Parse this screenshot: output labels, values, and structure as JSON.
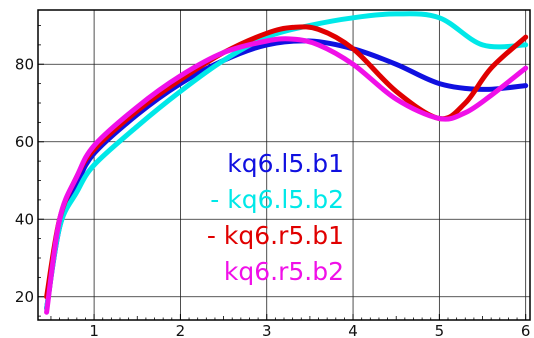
{
  "chart_data": {
    "type": "line",
    "title": "",
    "xlabel": "",
    "ylabel": "",
    "xlim": [
      0.35,
      6.05
    ],
    "ylim": [
      14,
      94
    ],
    "grid": true,
    "legend_placement": "center",
    "x_ticks": [
      {
        "value": 1,
        "label": "1"
      },
      {
        "value": 2,
        "label": "2"
      },
      {
        "value": 3,
        "label": "3"
      },
      {
        "value": 4,
        "label": "4"
      },
      {
        "value": 5,
        "label": "5"
      },
      {
        "value": 6,
        "label": "6"
      }
    ],
    "y_ticks": [
      {
        "value": 20,
        "label": "20"
      },
      {
        "value": 40,
        "label": "40"
      },
      {
        "value": 60,
        "label": "60"
      },
      {
        "value": 80,
        "label": "80"
      }
    ],
    "series": [
      {
        "name": "kq6.l5.b1",
        "legend_text": "kq6.l5.b1",
        "color": "#1010e0",
        "points": [
          [
            0.45,
            17
          ],
          [
            0.6,
            38
          ],
          [
            0.8,
            49
          ],
          [
            1,
            57
          ],
          [
            1.5,
            67
          ],
          [
            2,
            75
          ],
          [
            2.5,
            81
          ],
          [
            3,
            85
          ],
          [
            3.5,
            86
          ],
          [
            4,
            84
          ],
          [
            4.5,
            80
          ],
          [
            5,
            75
          ],
          [
            5.5,
            73.5
          ],
          [
            6,
            74.5
          ]
        ]
      },
      {
        "name": "kq6.l5.b2",
        "legend_text": "- kq6.l5.b2",
        "color": "#00e8e8",
        "points": [
          [
            0.45,
            17
          ],
          [
            0.6,
            38
          ],
          [
            0.8,
            47
          ],
          [
            1,
            54
          ],
          [
            1.5,
            64
          ],
          [
            2,
            73
          ],
          [
            2.5,
            81
          ],
          [
            3,
            87
          ],
          [
            3.5,
            90
          ],
          [
            4,
            92
          ],
          [
            4.5,
            93
          ],
          [
            5,
            92
          ],
          [
            5.5,
            85
          ],
          [
            6,
            85
          ]
        ]
      },
      {
        "name": "kq6.r5.b1",
        "legend_text": "- kq6.r5.b1",
        "color": "#e00000",
        "points": [
          [
            0.45,
            20
          ],
          [
            0.6,
            40
          ],
          [
            0.8,
            51
          ],
          [
            1,
            58
          ],
          [
            1.5,
            68
          ],
          [
            2,
            76
          ],
          [
            2.5,
            83
          ],
          [
            3,
            88
          ],
          [
            3.3,
            89.5
          ],
          [
            3.6,
            89
          ],
          [
            4,
            84
          ],
          [
            4.5,
            73
          ],
          [
            5,
            66
          ],
          [
            5.3,
            70
          ],
          [
            5.6,
            79
          ],
          [
            6,
            87
          ]
        ]
      },
      {
        "name": "kq6.r5.b2",
        "legend_text": "kq6.r5.b2",
        "color": "#f010e8",
        "points": [
          [
            0.45,
            16
          ],
          [
            0.6,
            40
          ],
          [
            0.8,
            51
          ],
          [
            1,
            59
          ],
          [
            1.5,
            69
          ],
          [
            2,
            77
          ],
          [
            2.5,
            83
          ],
          [
            3,
            86
          ],
          [
            3.3,
            86.5
          ],
          [
            3.6,
            85
          ],
          [
            4,
            80
          ],
          [
            4.5,
            71
          ],
          [
            5,
            66
          ],
          [
            5.3,
            67.5
          ],
          [
            5.6,
            72
          ],
          [
            6,
            79
          ]
        ]
      }
    ]
  }
}
